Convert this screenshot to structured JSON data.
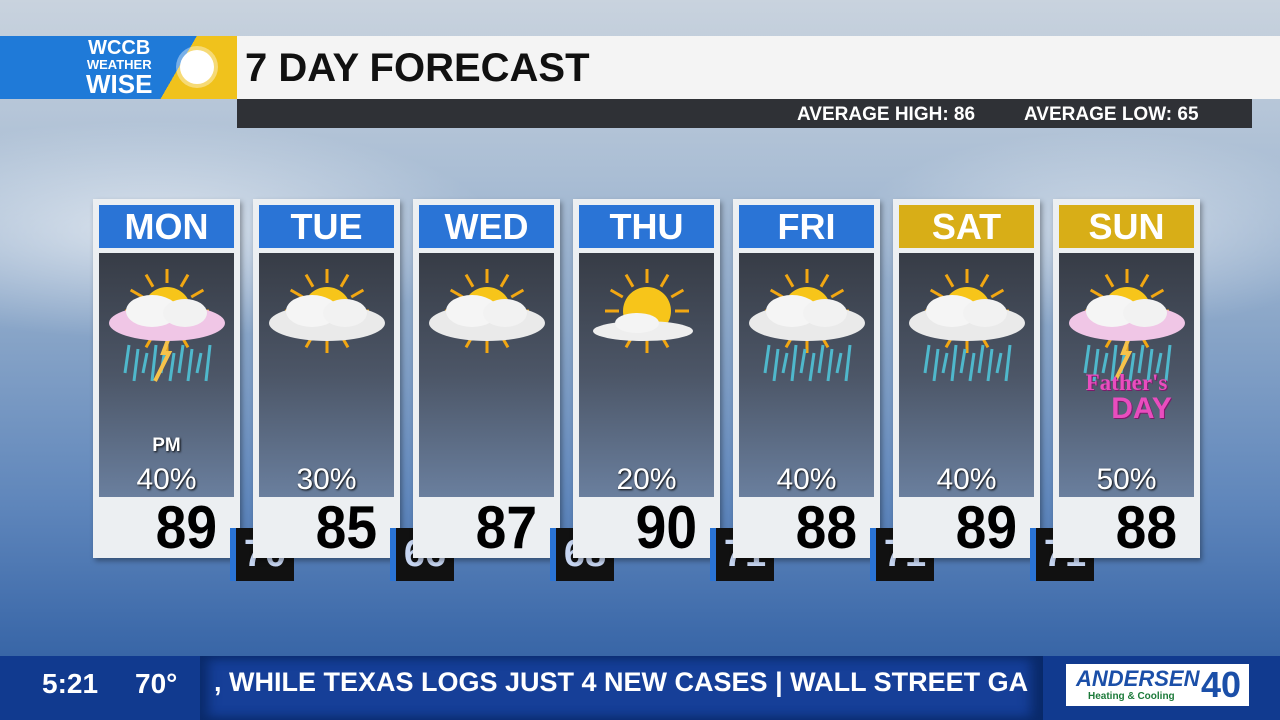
{
  "logo": {
    "line1": "WCCB",
    "line2": "WEATHER",
    "line3": "WISE"
  },
  "title": "7 DAY FORECAST",
  "averages": {
    "high": "AVERAGE HIGH: 86",
    "low": "AVERAGE LOW: 65"
  },
  "days": [
    {
      "day": "MON",
      "weekend": false,
      "icon": "thunderstorm-sun",
      "note": "PM",
      "precip": "40%",
      "high": "89",
      "low": "70"
    },
    {
      "day": "TUE",
      "weekend": false,
      "icon": "partly-cloudy",
      "note": "",
      "precip": "30%",
      "high": "85",
      "low": "66"
    },
    {
      "day": "WED",
      "weekend": false,
      "icon": "partly-cloudy",
      "note": "",
      "precip": "",
      "high": "87",
      "low": "68"
    },
    {
      "day": "THU",
      "weekend": false,
      "icon": "mostly-sunny",
      "note": "",
      "precip": "20%",
      "high": "90",
      "low": "71"
    },
    {
      "day": "FRI",
      "weekend": false,
      "icon": "showers-sun",
      "note": "",
      "precip": "40%",
      "high": "88",
      "low": "71"
    },
    {
      "day": "SAT",
      "weekend": true,
      "icon": "showers-sun",
      "note": "",
      "precip": "40%",
      "high": "89",
      "low": "71"
    },
    {
      "day": "SUN",
      "weekend": true,
      "icon": "thunderstorm-sun",
      "note": "",
      "precip": "50%",
      "high": "88",
      "low": ""
    }
  ],
  "fathers_day": {
    "line1": "Father's",
    "line2": "DAY"
  },
  "ticker": {
    "time": "5:21",
    "temp": "70°",
    "news": ", WHILE TEXAS LOGS JUST 4 NEW CASES   |   WALL STREET GA"
  },
  "sponsor": {
    "name": "ANDERSEN",
    "sub": "Heating & Cooling",
    "years": "40"
  },
  "colors": {
    "weekday": "#2a74d6",
    "weekend": "#d8ae17",
    "ticker": "#113a8f"
  }
}
